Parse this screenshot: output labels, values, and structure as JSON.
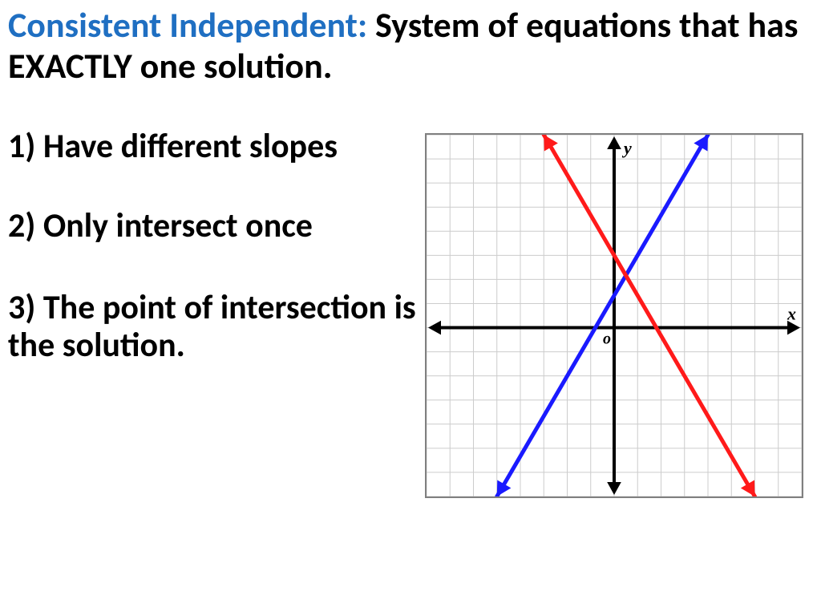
{
  "heading": {
    "term": "Consistent Independent:",
    "definition": "System of equations that has EXACTLY one solution."
  },
  "list": {
    "item1": "1) Have different slopes",
    "item2": "2) Only intersect once",
    "item3": "3) The point of intersection is the solution."
  },
  "graph": {
    "type": "line-chart",
    "background_color": "#ffffff",
    "grid_color": "#cccccc",
    "axis_color": "#000000",
    "grid_step": 1,
    "xlim": [
      -8,
      8
    ],
    "ylim": [
      -7,
      8
    ],
    "x_axis_y": 0,
    "y_axis_x": 0,
    "origin_label": "o",
    "x_label": "x",
    "y_label": "y",
    "axis_line_width": 4,
    "series": [
      {
        "name": "blue-line",
        "color": "#1a1aff",
        "line_width": 5,
        "arrow_ends": true,
        "points": [
          [
            -5,
            -7
          ],
          [
            4,
            8
          ]
        ]
      },
      {
        "name": "red-line",
        "color": "#ff1a1a",
        "line_width": 5,
        "arrow_ends": true,
        "points": [
          [
            -3,
            8
          ],
          [
            6,
            -7
          ]
        ]
      }
    ]
  }
}
